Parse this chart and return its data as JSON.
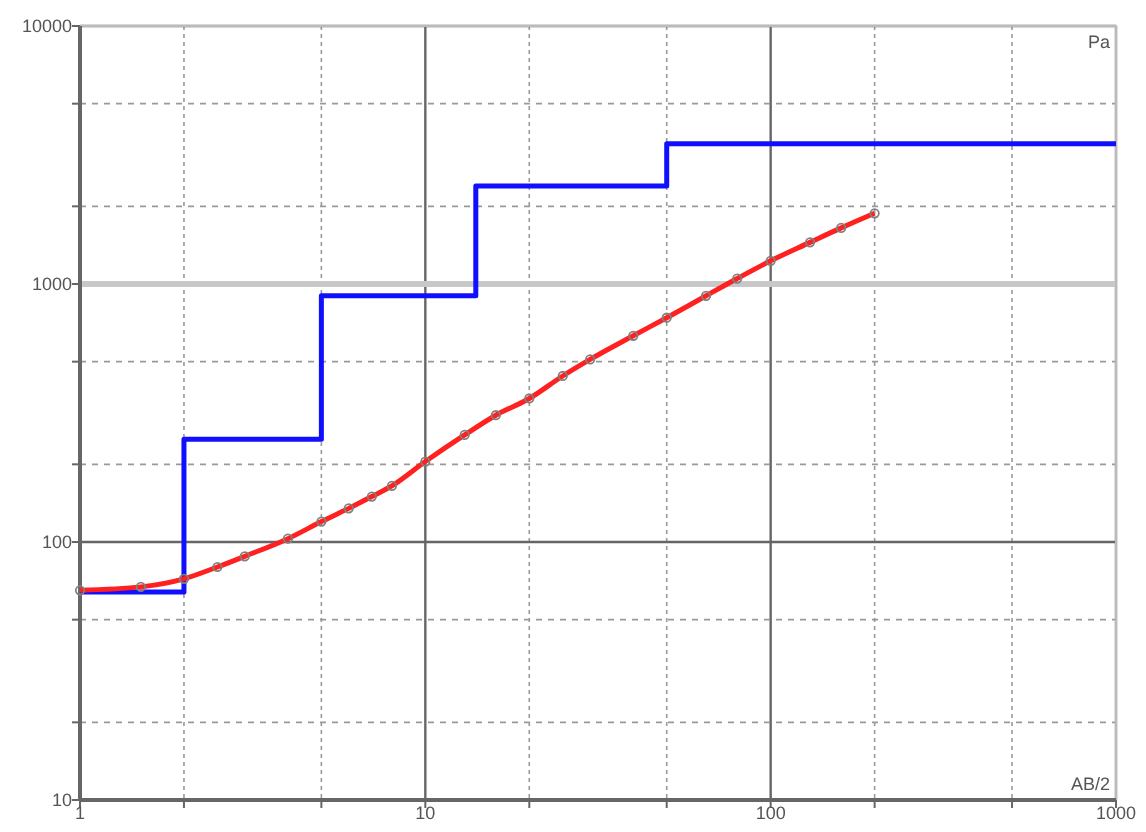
{
  "chart_data": {
    "type": "line",
    "xlabel": "AB/2",
    "ylabel": "Pa",
    "log": "xy",
    "grid": true,
    "xlim": [
      1,
      1000
    ],
    "ylim": [
      10,
      10000
    ],
    "xticks": [
      1,
      {
        "value": 2,
        "label": null
      },
      {
        "value": 5,
        "label": null
      },
      10,
      {
        "value": 20,
        "label": null
      },
      {
        "value": 50,
        "label": null
      },
      100,
      {
        "value": 200,
        "label": null
      },
      {
        "value": 500,
        "label": null
      },
      1000
    ],
    "yticks": [
      10,
      {
        "value": 20,
        "label": null
      },
      {
        "value": 50,
        "label": null
      },
      100,
      {
        "value": 200,
        "label": null
      },
      {
        "value": 500,
        "label": null
      },
      1000,
      {
        "value": 2000,
        "label": null
      },
      {
        "value": 5000,
        "label": null
      },
      10000
    ],
    "ref_lines": [
      {
        "axis": "y",
        "value": 1000,
        "label": null,
        "color": "#c8c8c8"
      }
    ],
    "series": [
      {
        "type": "step",
        "color": "#1010ff",
        "x": [
          1,
          2,
          5,
          14,
          50,
          1000
        ],
        "values": [
          64,
          250,
          900,
          2400,
          3500,
          3500
        ]
      },
      {
        "color": "#ff2020",
        "marker": "none",
        "x": [
          1,
          1.5,
          2,
          2.5,
          3,
          4,
          5,
          6,
          7,
          8,
          10,
          13,
          16,
          20,
          25,
          30,
          40,
          50,
          65,
          80,
          100,
          130,
          160,
          200
        ],
        "values": [
          65,
          67,
          72,
          80,
          88,
          103,
          120,
          135,
          150,
          165,
          205,
          260,
          310,
          360,
          440,
          510,
          630,
          740,
          900,
          1050,
          1230,
          1450,
          1650,
          1880
        ]
      },
      {
        "type": "scatter",
        "color": "#808080",
        "marker": "circle",
        "x": [
          1,
          1.5,
          2,
          2.5,
          3,
          4,
          5,
          6,
          7,
          8,
          10,
          13,
          16,
          20,
          25,
          30,
          40,
          50,
          65,
          80,
          100,
          130,
          160,
          200
        ],
        "values": [
          65,
          67,
          72,
          80,
          88,
          103,
          120,
          135,
          150,
          165,
          205,
          260,
          310,
          360,
          440,
          510,
          630,
          740,
          900,
          1050,
          1230,
          1450,
          1650,
          1880
        ]
      }
    ]
  }
}
